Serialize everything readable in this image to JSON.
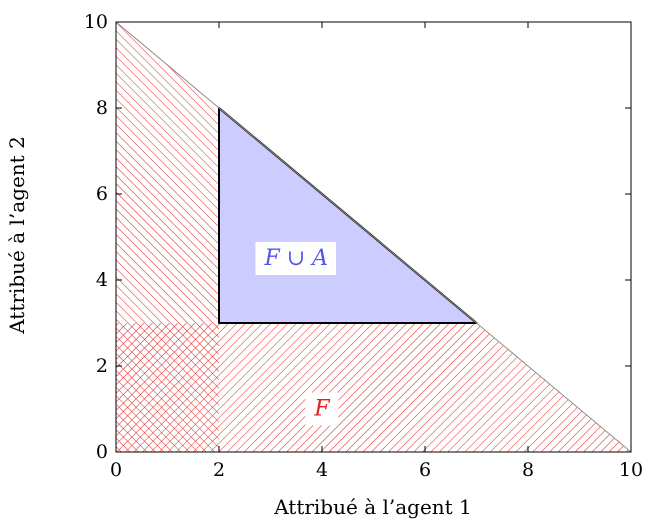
{
  "chart_data": {
    "type": "area",
    "xlabel": "Attribué à l’agent 1",
    "ylabel": "Attribué à l’agent 2",
    "xlim": [
      0,
      10
    ],
    "ylim": [
      0,
      10
    ],
    "xticks": [
      0,
      2,
      4,
      6,
      8,
      10
    ],
    "yticks": [
      0,
      2,
      4,
      6,
      8,
      10
    ],
    "grid": false,
    "budget_line": [
      [
        0,
        10
      ],
      [
        10,
        0
      ]
    ],
    "regions": [
      {
        "label": "F",
        "style": "hatch-ne",
        "color": "#e02020",
        "polygon": [
          [
            0,
            0
          ],
          [
            10,
            0
          ],
          [
            7,
            3
          ],
          [
            0,
            3
          ]
        ],
        "label_pos": [
          4,
          1
        ]
      },
      {
        "label": "",
        "style": "hatch-nw",
        "color": "#e02020",
        "polygon": [
          [
            0,
            0
          ],
          [
            2,
            0
          ],
          [
            2,
            8
          ],
          [
            0,
            10
          ]
        ]
      },
      {
        "label": "F ∪ A",
        "style": "solid",
        "color": "#5555ee",
        "fill": "#ccccff",
        "polygon": [
          [
            2,
            3
          ],
          [
            2,
            8
          ],
          [
            7,
            3
          ]
        ],
        "label_pos": [
          3.5,
          4.5
        ]
      }
    ]
  }
}
